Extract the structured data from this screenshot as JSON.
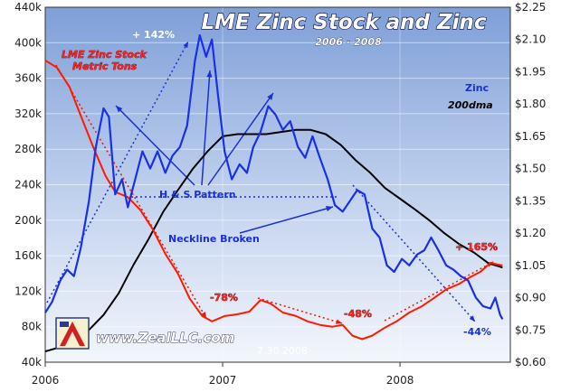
{
  "chart_data": {
    "type": "line",
    "title": "LME Zinc Stock and Zinc",
    "subtitle": "2006 - 2008",
    "x_ticks": [
      "2006",
      "2007",
      "2008"
    ],
    "x_range": [
      "2006-01-01",
      "2008-08-15"
    ],
    "y_left": {
      "ticks": [
        "40k",
        "80k",
        "120k",
        "160k",
        "200k",
        "240k",
        "280k",
        "320k",
        "360k",
        "400k",
        "440k"
      ],
      "range": [
        40000,
        440000
      ]
    },
    "y_right": {
      "ticks": [
        "$0.60",
        "$0.75",
        "$0.90",
        "$1.05",
        "$1.20",
        "$1.35",
        "$1.50",
        "$1.65",
        "$1.80",
        "$1.95",
        "$2.10",
        "$2.25"
      ],
      "range": [
        0.6,
        2.25
      ]
    },
    "grid": true,
    "series": [
      {
        "name": "LME Zinc Stock Metric Tons",
        "axis": "left",
        "color": "#ff1a00",
        "points": [
          [
            "2006-01-01",
            380000
          ],
          [
            "2006-01-25",
            372000
          ],
          [
            "2006-02-20",
            350000
          ],
          [
            "2006-03-15",
            318000
          ],
          [
            "2006-04-10",
            282000
          ],
          [
            "2006-05-05",
            250000
          ],
          [
            "2006-05-25",
            232000
          ],
          [
            "2006-06-20",
            226000
          ],
          [
            "2006-07-15",
            212000
          ],
          [
            "2006-08-10",
            190000
          ],
          [
            "2006-09-05",
            162000
          ],
          [
            "2006-10-01",
            140000
          ],
          [
            "2006-10-25",
            112000
          ],
          [
            "2006-11-20",
            92000
          ],
          [
            "2006-12-10",
            86000
          ],
          [
            "2007-01-05",
            92000
          ],
          [
            "2007-02-01",
            94000
          ],
          [
            "2007-02-25",
            97000
          ],
          [
            "2007-03-20",
            110000
          ],
          [
            "2007-04-10",
            106000
          ],
          [
            "2007-05-05",
            96000
          ],
          [
            "2007-06-01",
            92000
          ],
          [
            "2007-06-25",
            86000
          ],
          [
            "2007-07-20",
            82000
          ],
          [
            "2007-08-15",
            80000
          ],
          [
            "2007-09-05",
            82000
          ],
          [
            "2007-09-25",
            70000
          ],
          [
            "2007-10-15",
            66000
          ],
          [
            "2007-11-05",
            70000
          ],
          [
            "2007-12-01",
            79000
          ],
          [
            "2007-12-25",
            86000
          ],
          [
            "2008-01-20",
            96000
          ],
          [
            "2008-02-15",
            103000
          ],
          [
            "2008-03-10",
            112000
          ],
          [
            "2008-04-05",
            122000
          ],
          [
            "2008-05-01",
            128000
          ],
          [
            "2008-05-25",
            136000
          ],
          [
            "2008-06-15",
            142000
          ],
          [
            "2008-07-05",
            152000
          ],
          [
            "2008-07-20",
            150000
          ],
          [
            "2008-07-30",
            149000
          ]
        ]
      },
      {
        "name": "Zinc",
        "axis": "right",
        "color": "#1a2fe8",
        "points": [
          [
            "2006-01-01",
            0.83
          ],
          [
            "2006-01-15",
            0.88
          ],
          [
            "2006-02-01",
            0.98
          ],
          [
            "2006-02-15",
            1.03
          ],
          [
            "2006-03-01",
            1.0
          ],
          [
            "2006-03-15",
            1.13
          ],
          [
            "2006-04-01",
            1.35
          ],
          [
            "2006-04-15",
            1.6
          ],
          [
            "2006-05-01",
            1.78
          ],
          [
            "2006-05-12",
            1.74
          ],
          [
            "2006-05-25",
            1.38
          ],
          [
            "2006-06-08",
            1.45
          ],
          [
            "2006-06-20",
            1.32
          ],
          [
            "2006-07-05",
            1.45
          ],
          [
            "2006-07-20",
            1.58
          ],
          [
            "2006-08-05",
            1.5
          ],
          [
            "2006-08-20",
            1.58
          ],
          [
            "2006-09-05",
            1.48
          ],
          [
            "2006-09-20",
            1.56
          ],
          [
            "2006-10-05",
            1.6
          ],
          [
            "2006-10-20",
            1.7
          ],
          [
            "2006-11-05",
            2.0
          ],
          [
            "2006-11-15",
            2.12
          ],
          [
            "2006-11-28",
            2.02
          ],
          [
            "2006-12-10",
            2.1
          ],
          [
            "2006-12-22",
            1.85
          ],
          [
            "2007-01-05",
            1.58
          ],
          [
            "2007-01-20",
            1.45
          ],
          [
            "2007-02-05",
            1.52
          ],
          [
            "2007-02-20",
            1.48
          ],
          [
            "2007-03-05",
            1.6
          ],
          [
            "2007-03-20",
            1.67
          ],
          [
            "2007-04-05",
            1.79
          ],
          [
            "2007-04-20",
            1.75
          ],
          [
            "2007-05-05",
            1.68
          ],
          [
            "2007-05-20",
            1.72
          ],
          [
            "2007-06-05",
            1.6
          ],
          [
            "2007-06-20",
            1.55
          ],
          [
            "2007-07-05",
            1.65
          ],
          [
            "2007-07-20",
            1.55
          ],
          [
            "2007-08-05",
            1.45
          ],
          [
            "2007-08-20",
            1.33
          ],
          [
            "2007-09-05",
            1.3
          ],
          [
            "2007-09-20",
            1.35
          ],
          [
            "2007-10-05",
            1.4
          ],
          [
            "2007-10-20",
            1.38
          ],
          [
            "2007-11-05",
            1.22
          ],
          [
            "2007-11-20",
            1.18
          ],
          [
            "2007-12-05",
            1.05
          ],
          [
            "2007-12-20",
            1.02
          ],
          [
            "2008-01-05",
            1.08
          ],
          [
            "2008-01-20",
            1.05
          ],
          [
            "2008-02-05",
            1.1
          ],
          [
            "2008-02-20",
            1.12
          ],
          [
            "2008-03-05",
            1.18
          ],
          [
            "2008-03-20",
            1.12
          ],
          [
            "2008-04-05",
            1.05
          ],
          [
            "2008-04-20",
            1.03
          ],
          [
            "2008-05-05",
            1.0
          ],
          [
            "2008-05-20",
            0.98
          ],
          [
            "2008-06-05",
            0.9
          ],
          [
            "2008-06-20",
            0.86
          ],
          [
            "2008-07-05",
            0.85
          ],
          [
            "2008-07-15",
            0.9
          ],
          [
            "2008-07-25",
            0.82
          ],
          [
            "2008-07-30",
            0.8
          ]
        ]
      },
      {
        "name": "200dma",
        "axis": "right",
        "color": "#000000",
        "points": [
          [
            "2006-01-01",
            0.65
          ],
          [
            "2006-02-01",
            0.67
          ],
          [
            "2006-03-01",
            0.7
          ],
          [
            "2006-04-01",
            0.75
          ],
          [
            "2006-05-01",
            0.82
          ],
          [
            "2006-06-01",
            0.92
          ],
          [
            "2006-07-01",
            1.05
          ],
          [
            "2006-08-01",
            1.17
          ],
          [
            "2006-09-01",
            1.3
          ],
          [
            "2006-10-01",
            1.4
          ],
          [
            "2006-11-01",
            1.5
          ],
          [
            "2006-12-01",
            1.58
          ],
          [
            "2007-01-01",
            1.65
          ],
          [
            "2007-02-01",
            1.66
          ],
          [
            "2007-03-01",
            1.66
          ],
          [
            "2007-04-01",
            1.66
          ],
          [
            "2007-05-01",
            1.67
          ],
          [
            "2007-06-01",
            1.68
          ],
          [
            "2007-07-01",
            1.68
          ],
          [
            "2007-08-01",
            1.66
          ],
          [
            "2007-09-01",
            1.61
          ],
          [
            "2007-10-01",
            1.54
          ],
          [
            "2007-11-01",
            1.48
          ],
          [
            "2007-12-01",
            1.41
          ],
          [
            "2008-01-01",
            1.36
          ],
          [
            "2008-02-01",
            1.31
          ],
          [
            "2008-03-01",
            1.26
          ],
          [
            "2008-04-01",
            1.2
          ],
          [
            "2008-05-01",
            1.15
          ],
          [
            "2008-06-01",
            1.11
          ],
          [
            "2008-07-01",
            1.06
          ],
          [
            "2008-07-30",
            1.04
          ]
        ]
      }
    ],
    "annotations": {
      "pct_142": "+ 142%",
      "pct_78": "-78%",
      "pct_48": "-48%",
      "pct_165": "+ 165%",
      "pct_44": "-44%",
      "head_shoulders": "H & S Pattern",
      "neckline": "Neckline Broken",
      "legend_stock_line1": "LME Zinc Stock",
      "legend_stock_line2": "Metric Tons",
      "legend_zinc": "Zinc",
      "legend_dma": "200dma",
      "date_stamp": "7.30.2008",
      "brand": "www.ZealLLC.com"
    }
  }
}
